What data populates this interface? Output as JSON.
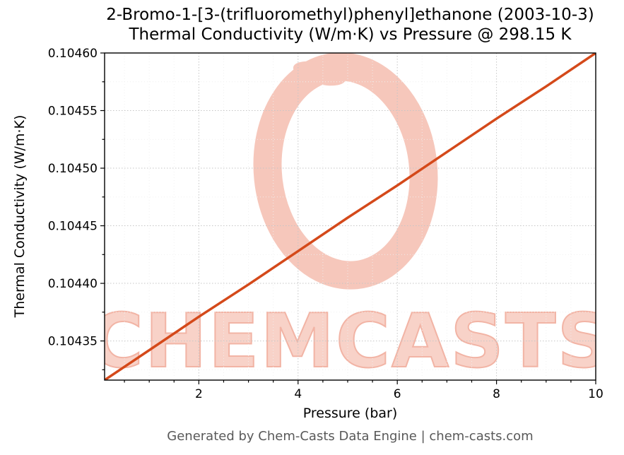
{
  "chart_data": {
    "type": "line",
    "title": "2-Bromo-1-[3-(trifluoromethyl)phenyl]ethanone (2003-10-3)",
    "subtitle": "Thermal Conductivity (W/m·K) vs Pressure @ 298.15 K",
    "xlabel": "Pressure (bar)",
    "ylabel": "Thermal Conductivity (W/m·K)",
    "xlim": [
      0.1,
      10
    ],
    "ylim": [
      0.104316,
      0.1046
    ],
    "x_ticks": [
      2,
      4,
      6,
      8,
      10
    ],
    "y_ticks": [
      0.10435,
      0.1044,
      0.10445,
      0.1045,
      0.10455,
      0.1046
    ],
    "y_tick_decimals": 5,
    "grid": true,
    "legend": false,
    "series": [
      {
        "name": "thermal_conductivity_vs_pressure",
        "color": "#d4491a",
        "x": [
          0.1,
          1,
          2,
          3,
          4,
          5,
          6,
          7,
          8,
          9,
          10
        ],
        "y": [
          0.104316,
          0.104342,
          0.104371,
          0.104399,
          0.104428,
          0.104457,
          0.104485,
          0.104514,
          0.104543,
          0.104571,
          0.1046
        ]
      }
    ],
    "watermark": {
      "text": "CHEMCASTS",
      "color_text": "#f8d2c8",
      "color_outline": "#f2b4a5",
      "color_logo": "#f6c7bb"
    }
  },
  "footer": "Generated by Chem-Casts Data Engine | chem-casts.com"
}
